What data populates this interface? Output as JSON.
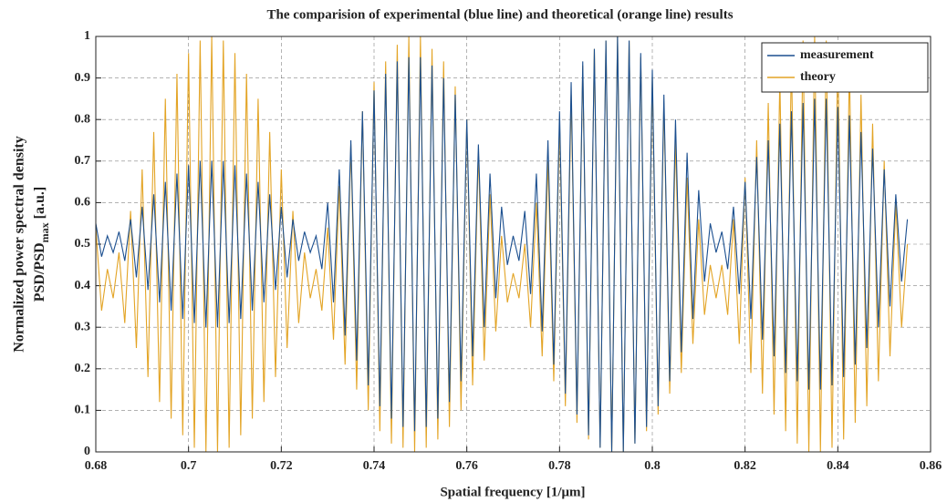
{
  "chart_data": {
    "type": "line",
    "title": "The comparision of experimental (blue line) and theoretical (orange line) results",
    "xlabel": "Spatial frequency [1/μm]",
    "ylabel": [
      "Normalized power spectral density",
      "PSD/PSD",
      "max",
      " [a.u.]"
    ],
    "xlim": [
      0.68,
      0.86
    ],
    "xticks": [
      0.68,
      0.7,
      0.72,
      0.74,
      0.76,
      0.78,
      0.8,
      0.82,
      0.84,
      0.86
    ],
    "ylim": [
      0,
      1
    ],
    "yticks": [
      0,
      0.1,
      0.2,
      0.3,
      0.4,
      0.5,
      0.6,
      0.7,
      0.8,
      0.9,
      1
    ],
    "grid": true,
    "legend": "upper right",
    "x": [
      0.68,
      0.68125,
      0.6825,
      0.68375,
      0.685,
      0.68625,
      0.6875,
      0.68875,
      0.69,
      0.69125,
      0.6925,
      0.69375,
      0.695,
      0.69625,
      0.6975,
      0.69875,
      0.7,
      0.70125,
      0.7025,
      0.70375,
      0.705,
      0.70625,
      0.7075,
      0.70875,
      0.71,
      0.71125,
      0.7125,
      0.71375,
      0.715,
      0.71625,
      0.7175,
      0.71875,
      0.72,
      0.72125,
      0.7225,
      0.72375,
      0.725,
      0.72625,
      0.7275,
      0.72875,
      0.73,
      0.73125,
      0.7325,
      0.73375,
      0.735,
      0.73625,
      0.7375,
      0.73875,
      0.74,
      0.74125,
      0.7425,
      0.74375,
      0.745,
      0.74625,
      0.7475,
      0.74875,
      0.75,
      0.75125,
      0.7525,
      0.75375,
      0.755,
      0.75625,
      0.7575,
      0.75875,
      0.76,
      0.76125,
      0.7625,
      0.76375,
      0.765,
      0.76625,
      0.7675,
      0.76875,
      0.77,
      0.77125,
      0.7725,
      0.77375,
      0.775,
      0.77625,
      0.7775,
      0.77875,
      0.78,
      0.78125,
      0.7825,
      0.78375,
      0.785,
      0.78625,
      0.7875,
      0.78875,
      0.79,
      0.79125,
      0.7925,
      0.79375,
      0.795,
      0.79625,
      0.7975,
      0.79875,
      0.8,
      0.80125,
      0.8025,
      0.80375,
      0.805,
      0.80625,
      0.8075,
      0.80875,
      0.81,
      0.81125,
      0.8125,
      0.81375,
      0.815,
      0.81625,
      0.8175,
      0.81875,
      0.82,
      0.82125,
      0.8225,
      0.82375,
      0.825,
      0.82625,
      0.8275,
      0.82875,
      0.83,
      0.83125,
      0.8325,
      0.83375,
      0.835,
      0.83625,
      0.8375,
      0.83875,
      0.84,
      0.84125,
      0.8425,
      0.84375,
      0.845,
      0.84625,
      0.8475,
      0.84875,
      0.85,
      0.85125,
      0.8525,
      0.85375,
      0.855
    ],
    "series": [
      {
        "name": "measurement",
        "color": "#1b4f8f",
        "values": [
          0.55,
          0.47,
          0.52,
          0.48,
          0.53,
          0.46,
          0.56,
          0.42,
          0.59,
          0.39,
          0.62,
          0.36,
          0.65,
          0.34,
          0.67,
          0.32,
          0.69,
          0.31,
          0.7,
          0.3,
          0.7,
          0.3,
          0.7,
          0.31,
          0.69,
          0.32,
          0.67,
          0.34,
          0.65,
          0.36,
          0.62,
          0.39,
          0.59,
          0.42,
          0.56,
          0.46,
          0.53,
          0.48,
          0.52,
          0.44,
          0.6,
          0.36,
          0.68,
          0.28,
          0.75,
          0.22,
          0.82,
          0.16,
          0.87,
          0.11,
          0.91,
          0.08,
          0.94,
          0.06,
          0.95,
          0.05,
          0.95,
          0.06,
          0.93,
          0.08,
          0.9,
          0.12,
          0.86,
          0.17,
          0.8,
          0.23,
          0.74,
          0.3,
          0.67,
          0.37,
          0.59,
          0.45,
          0.52,
          0.46,
          0.58,
          0.38,
          0.67,
          0.29,
          0.75,
          0.21,
          0.82,
          0.14,
          0.89,
          0.09,
          0.94,
          0.04,
          0.97,
          0.01,
          0.99,
          0,
          1,
          0,
          0.99,
          0.02,
          0.96,
          0.06,
          0.92,
          0.11,
          0.86,
          0.17,
          0.8,
          0.24,
          0.72,
          0.32,
          0.63,
          0.41,
          0.55,
          0.48,
          0.53,
          0.44,
          0.59,
          0.38,
          0.65,
          0.32,
          0.71,
          0.27,
          0.75,
          0.23,
          0.79,
          0.19,
          0.82,
          0.17,
          0.84,
          0.15,
          0.85,
          0.15,
          0.85,
          0.16,
          0.83,
          0.18,
          0.81,
          0.21,
          0.77,
          0.25,
          0.73,
          0.3,
          0.68,
          0.35,
          0.62,
          0.41,
          0.56
        ]
      },
      {
        "name": "theory",
        "color": "#e3a425",
        "values": [
          0.54,
          0.34,
          0.44,
          0.37,
          0.48,
          0.31,
          0.58,
          0.25,
          0.68,
          0.18,
          0.77,
          0.12,
          0.85,
          0.08,
          0.91,
          0.04,
          0.96,
          0.01,
          0.99,
          0,
          1,
          0,
          0.99,
          0.01,
          0.96,
          0.04,
          0.91,
          0.08,
          0.85,
          0.12,
          0.77,
          0.18,
          0.68,
          0.25,
          0.58,
          0.31,
          0.48,
          0.37,
          0.44,
          0.34,
          0.54,
          0.27,
          0.64,
          0.21,
          0.74,
          0.15,
          0.82,
          0.1,
          0.89,
          0.05,
          0.94,
          0.02,
          0.98,
          0.01,
          1,
          0,
          1,
          0.01,
          0.97,
          0.03,
          0.94,
          0.06,
          0.88,
          0.1,
          0.8,
          0.16,
          0.72,
          0.22,
          0.62,
          0.29,
          0.52,
          0.36,
          0.43,
          0.37,
          0.5,
          0.3,
          0.6,
          0.23,
          0.7,
          0.17,
          0.79,
          0.11,
          0.86,
          0.07,
          0.93,
          0.03,
          0.97,
          0.01,
          0.99,
          0,
          1,
          0,
          0.99,
          0.02,
          0.95,
          0.05,
          0.9,
          0.09,
          0.84,
          0.14,
          0.75,
          0.19,
          0.66,
          0.26,
          0.56,
          0.33,
          0.45,
          0.37,
          0.45,
          0.33,
          0.56,
          0.26,
          0.66,
          0.19,
          0.75,
          0.14,
          0.84,
          0.09,
          0.9,
          0.05,
          0.95,
          0.02,
          0.99,
          0,
          1,
          0,
          0.99,
          0.01,
          0.97,
          0.03,
          0.93,
          0.07,
          0.86,
          0.11,
          0.79,
          0.17,
          0.7,
          0.23,
          0.6,
          0.3,
          0.5
        ]
      }
    ]
  }
}
